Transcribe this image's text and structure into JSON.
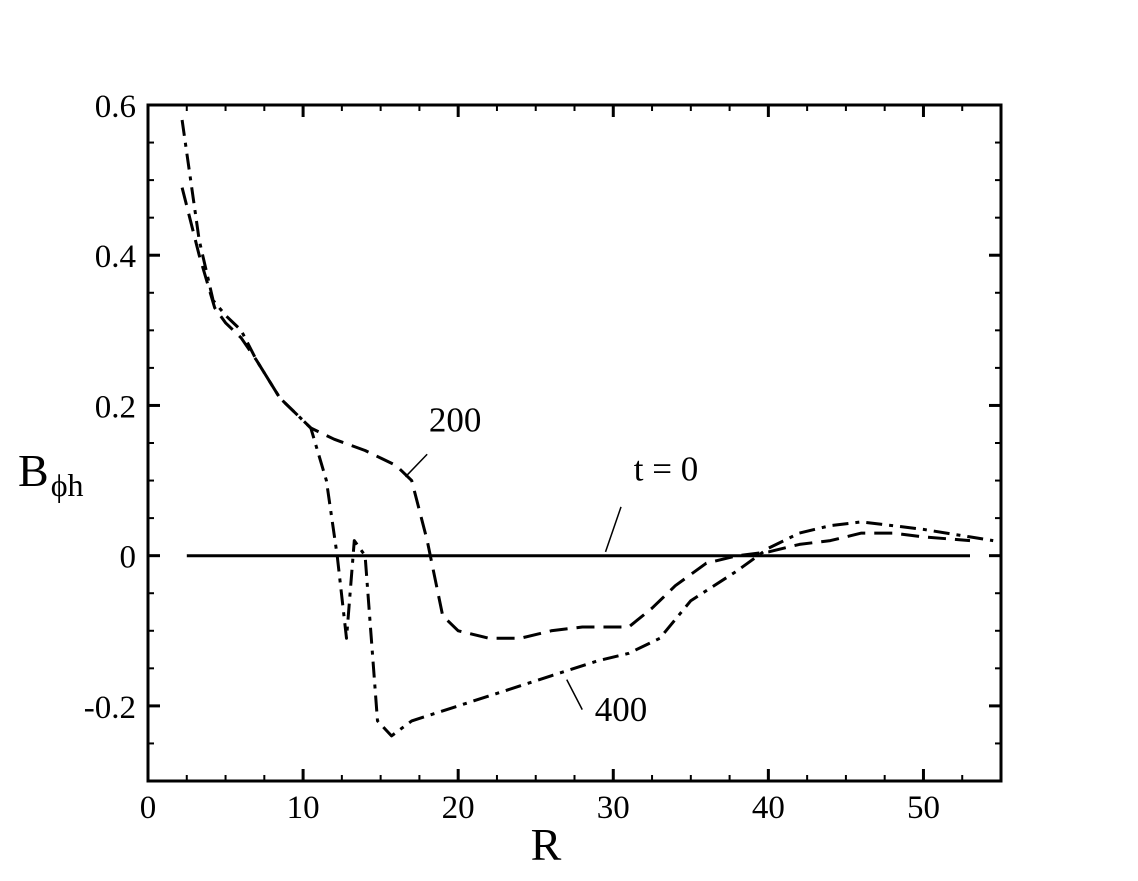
{
  "chart_data": {
    "type": "line",
    "xlabel": "R",
    "ylabel": {
      "main": "B",
      "sub": "ϕh"
    },
    "xlim": [
      0,
      55
    ],
    "ylim": [
      -0.3,
      0.6
    ],
    "x_ticks": [
      0,
      10,
      20,
      30,
      40,
      50
    ],
    "x_tick_labels": [
      "0",
      "10",
      "20",
      "30",
      "40",
      "50"
    ],
    "y_ticks": [
      -0.2,
      0,
      0.2,
      0.4,
      0.6
    ],
    "y_tick_labels": [
      "-0.2",
      "0",
      "0.2",
      "0.4",
      "0.6"
    ],
    "x_minor_step": 2.5,
    "y_minor_step": 0.05,
    "grid": false,
    "legend": "none",
    "series": [
      {
        "style": "solid",
        "points": [
          [
            2.5,
            0
          ],
          [
            53,
            0
          ]
        ]
      },
      {
        "style": "dashed",
        "points": [
          [
            2.2,
            0.49
          ],
          [
            3.3,
            0.4
          ],
          [
            4.3,
            0.33
          ],
          [
            5,
            0.31
          ],
          [
            6,
            0.29
          ],
          [
            7,
            0.26
          ],
          [
            8.5,
            0.21
          ],
          [
            10.5,
            0.17
          ],
          [
            12,
            0.155
          ],
          [
            14,
            0.14
          ],
          [
            16,
            0.12
          ],
          [
            17,
            0.1
          ],
          [
            18,
            0.02
          ],
          [
            19,
            -0.08
          ],
          [
            20,
            -0.1
          ],
          [
            22,
            -0.11
          ],
          [
            24,
            -0.11
          ],
          [
            26,
            -0.1
          ],
          [
            28,
            -0.095
          ],
          [
            31,
            -0.095
          ],
          [
            32.5,
            -0.07
          ],
          [
            34,
            -0.04
          ],
          [
            36,
            -0.01
          ],
          [
            38,
            0.0
          ],
          [
            40,
            0.005
          ],
          [
            42,
            0.015
          ],
          [
            44,
            0.02
          ],
          [
            46,
            0.03
          ],
          [
            48,
            0.03
          ],
          [
            50,
            0.025
          ],
          [
            53,
            0.02
          ]
        ]
      },
      {
        "style": "dashdot",
        "points": [
          [
            2.2,
            0.58
          ],
          [
            3.3,
            0.42
          ],
          [
            4.2,
            0.34
          ],
          [
            5,
            0.32
          ],
          [
            6,
            0.3
          ],
          [
            7,
            0.26
          ],
          [
            8.5,
            0.21
          ],
          [
            10.5,
            0.17
          ],
          [
            11.5,
            0.1
          ],
          [
            12.2,
            0.0
          ],
          [
            12.8,
            -0.11
          ],
          [
            13.3,
            0.02
          ],
          [
            14,
            0.0
          ],
          [
            14.8,
            -0.22
          ],
          [
            15.7,
            -0.24
          ],
          [
            17,
            -0.22
          ],
          [
            20,
            -0.2
          ],
          [
            23,
            -0.18
          ],
          [
            26,
            -0.16
          ],
          [
            29,
            -0.14
          ],
          [
            31,
            -0.13
          ],
          [
            33,
            -0.11
          ],
          [
            35,
            -0.06
          ],
          [
            38,
            -0.02
          ],
          [
            40,
            0.01
          ],
          [
            42,
            0.03
          ],
          [
            44,
            0.04
          ],
          [
            46,
            0.045
          ],
          [
            48,
            0.04
          ],
          [
            50,
            0.035
          ],
          [
            53,
            0.025
          ],
          [
            54.5,
            0.02
          ]
        ]
      }
    ],
    "annotations": [
      {
        "text": "t = 0",
        "at": [
          33.4,
          0.1
        ],
        "leader_from": [
          30.5,
          0.065
        ],
        "leader_to": [
          29.5,
          0.005
        ]
      },
      {
        "text": "200",
        "at": [
          19.8,
          0.165
        ],
        "leader_from": [
          18.0,
          0.135
        ],
        "leader_to": [
          16.6,
          0.105
        ]
      },
      {
        "text": "400",
        "at": [
          30.5,
          -0.22
        ],
        "leader_from": [
          28.0,
          -0.205
        ],
        "leader_to": [
          27.0,
          -0.165
        ]
      }
    ]
  }
}
